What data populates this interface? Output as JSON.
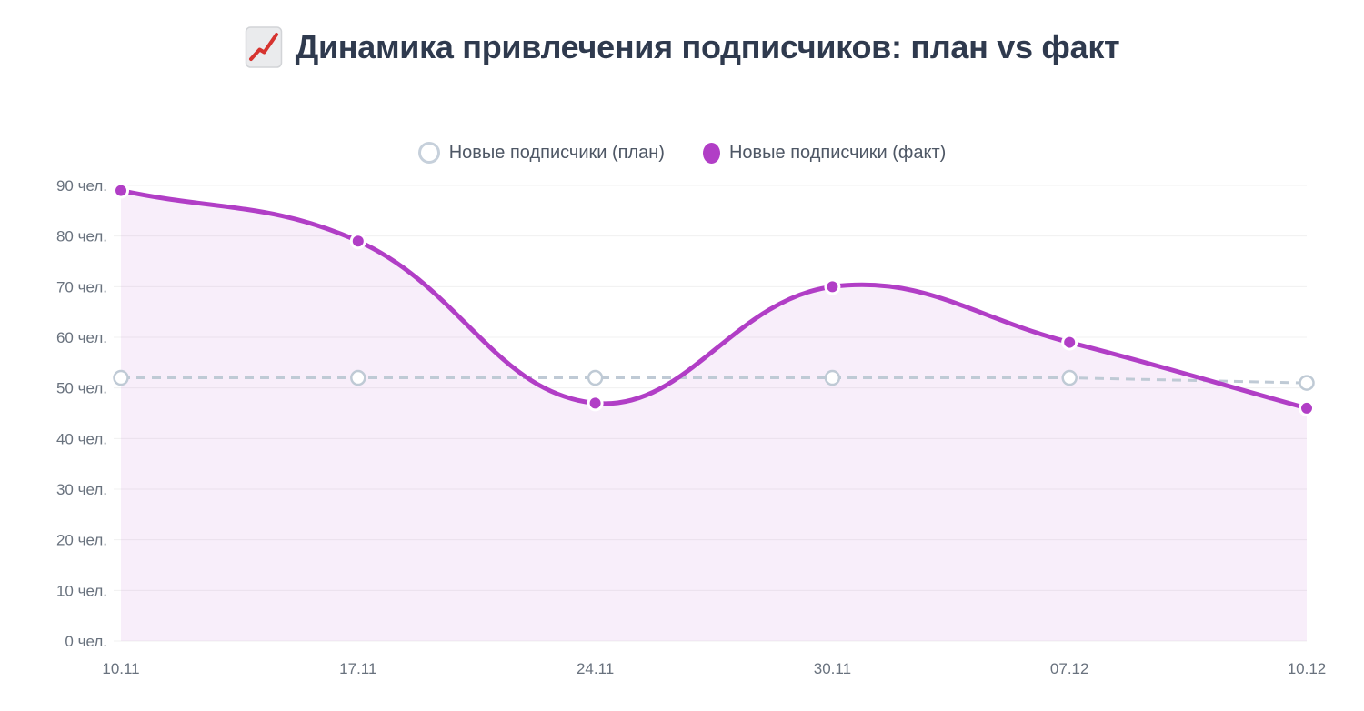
{
  "title": {
    "text": "Динамика привлечения подписчиков: план vs факт",
    "icon": "chart-increasing"
  },
  "legend": {
    "position": "top",
    "items": [
      {
        "label": "Новые подписчики (план)",
        "marker": "hollow-circle"
      },
      {
        "label": "Новые подписчики (факт)",
        "marker": "filled-circle"
      }
    ]
  },
  "chart_data": {
    "type": "line",
    "title": "Динамика привлечения подписчиков: план vs факт",
    "categories": [
      "10.11",
      "17.11",
      "24.11",
      "30.11",
      "07.12",
      "10.12"
    ],
    "series": [
      {
        "name": "Новые подписчики (план)",
        "values": [
          52,
          52,
          52,
          52,
          52,
          51
        ],
        "color": "#BFCAD5",
        "line_style": "dashed",
        "point_style": "hollow-circle",
        "smooth": false,
        "area_fill": "none"
      },
      {
        "name": "Новые подписчики (факт)",
        "values": [
          89,
          79,
          47,
          70,
          59,
          46
        ],
        "color": "#B13EC6",
        "line_style": "solid",
        "point_style": "filled-circle",
        "smooth": true,
        "area_fill": "rgba(177,62,198,0.09)"
      }
    ],
    "yticks": [
      0,
      10,
      20,
      30,
      40,
      50,
      60,
      70,
      80,
      90
    ],
    "ytick_suffix": " чел.",
    "ylim": [
      0,
      90
    ],
    "xlabel": "",
    "ylabel": "",
    "grid": "horizontal",
    "legend_position": "top"
  },
  "colors": {
    "background": "#FFFFFF",
    "title_text": "#2F3A4E",
    "axis_label": "#69727E",
    "legend_label": "#4E5765",
    "grid_line": "#F0F0F0",
    "plan_accent": "#BFCAD5",
    "fact_accent": "#B13EC6",
    "emoji_red": "#D6332F"
  }
}
